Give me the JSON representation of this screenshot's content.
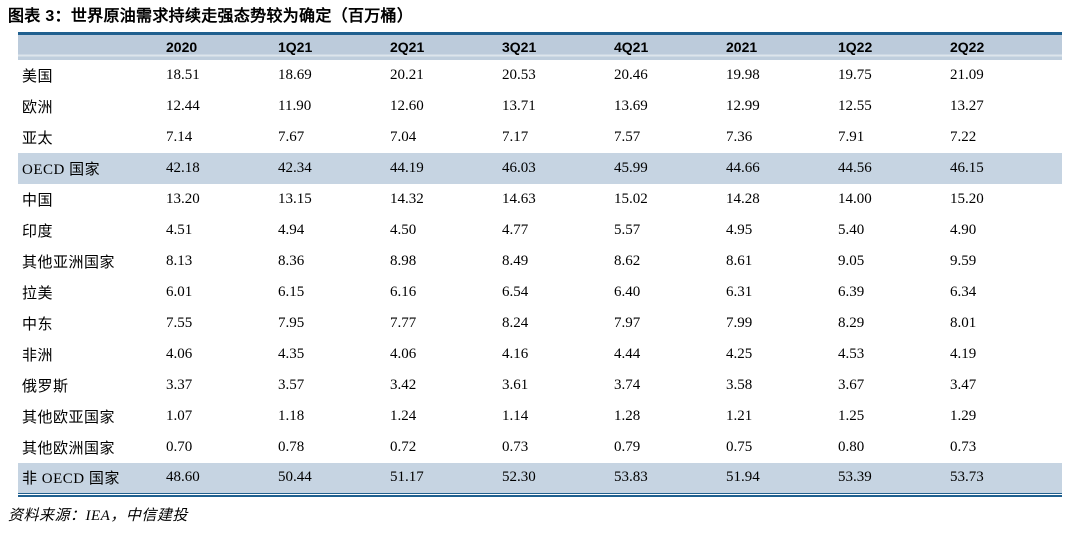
{
  "figure": {
    "title": "图表 3：世界原油需求持续走强态势较为确定（百万桶）",
    "source": "资料来源：IEA，中信建投"
  },
  "colors": {
    "accent_border": "#20608f",
    "header_bg": "#bfcedd",
    "highlight_row_bg": "#c6d4e2"
  },
  "chart_data": {
    "type": "table",
    "title": "世界原油需求持续走强态势较为确定（百万桶）",
    "unit": "百万桶",
    "columns": [
      "2020",
      "1Q21",
      "2Q21",
      "3Q21",
      "4Q21",
      "2021",
      "1Q22",
      "2Q22"
    ],
    "rows": [
      {
        "label": "美国",
        "highlight": false,
        "values": [
          "18.51",
          "18.69",
          "20.21",
          "20.53",
          "20.46",
          "19.98",
          "19.75",
          "21.09"
        ]
      },
      {
        "label": "欧洲",
        "highlight": false,
        "values": [
          "12.44",
          "11.90",
          "12.60",
          "13.71",
          "13.69",
          "12.99",
          "12.55",
          "13.27"
        ]
      },
      {
        "label": "亚太",
        "highlight": false,
        "values": [
          "7.14",
          "7.67",
          "7.04",
          "7.17",
          "7.57",
          "7.36",
          "7.91",
          "7.22"
        ]
      },
      {
        "label": "OECD 国家",
        "highlight": true,
        "values": [
          "42.18",
          "42.34",
          "44.19",
          "46.03",
          "45.99",
          "44.66",
          "44.56",
          "46.15"
        ]
      },
      {
        "label": "中国",
        "highlight": false,
        "values": [
          "13.20",
          "13.15",
          "14.32",
          "14.63",
          "15.02",
          "14.28",
          "14.00",
          "15.20"
        ]
      },
      {
        "label": "印度",
        "highlight": false,
        "values": [
          "4.51",
          "4.94",
          "4.50",
          "4.77",
          "5.57",
          "4.95",
          "5.40",
          "4.90"
        ]
      },
      {
        "label": "其他亚洲国家",
        "highlight": false,
        "values": [
          "8.13",
          "8.36",
          "8.98",
          "8.49",
          "8.62",
          "8.61",
          "9.05",
          "9.59"
        ]
      },
      {
        "label": "拉美",
        "highlight": false,
        "values": [
          "6.01",
          "6.15",
          "6.16",
          "6.54",
          "6.40",
          "6.31",
          "6.39",
          "6.34"
        ]
      },
      {
        "label": "中东",
        "highlight": false,
        "values": [
          "7.55",
          "7.95",
          "7.77",
          "8.24",
          "7.97",
          "7.99",
          "8.29",
          "8.01"
        ]
      },
      {
        "label": "非洲",
        "highlight": false,
        "values": [
          "4.06",
          "4.35",
          "4.06",
          "4.16",
          "4.44",
          "4.25",
          "4.53",
          "4.19"
        ]
      },
      {
        "label": "俄罗斯",
        "highlight": false,
        "values": [
          "3.37",
          "3.57",
          "3.42",
          "3.61",
          "3.74",
          "3.58",
          "3.67",
          "3.47"
        ]
      },
      {
        "label": "其他欧亚国家",
        "highlight": false,
        "values": [
          "1.07",
          "1.18",
          "1.24",
          "1.14",
          "1.28",
          "1.21",
          "1.25",
          "1.29"
        ]
      },
      {
        "label": "其他欧洲国家",
        "highlight": false,
        "values": [
          "0.70",
          "0.78",
          "0.72",
          "0.73",
          "0.79",
          "0.75",
          "0.80",
          "0.73"
        ]
      },
      {
        "label": "非 OECD 国家",
        "highlight": true,
        "values": [
          "48.60",
          "50.44",
          "51.17",
          "52.30",
          "53.83",
          "51.94",
          "53.39",
          "53.73"
        ]
      }
    ]
  }
}
